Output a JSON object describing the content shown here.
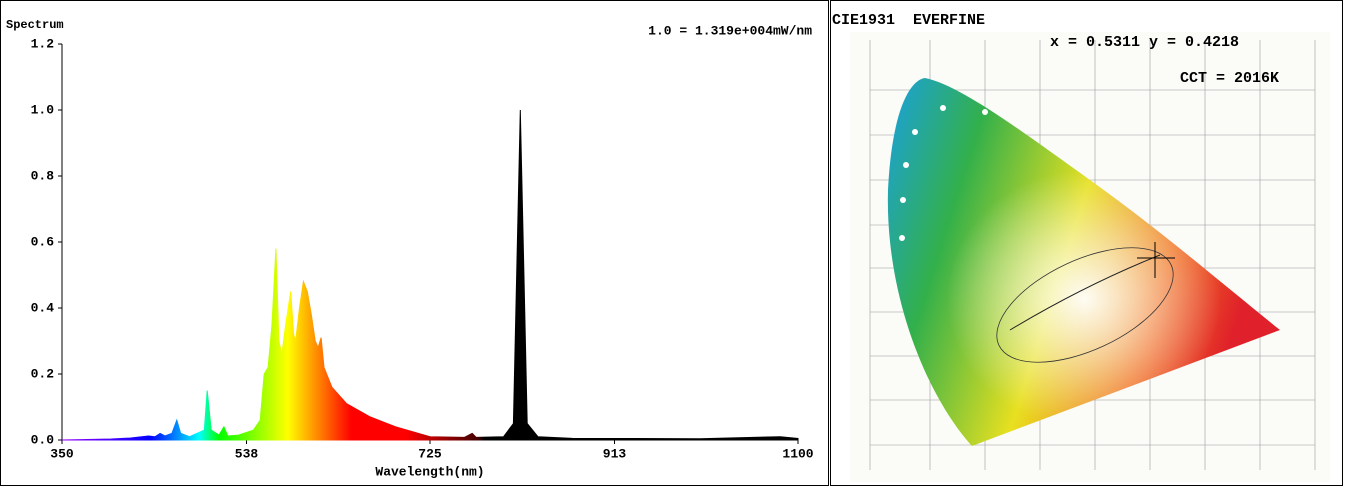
{
  "chart_data": {
    "type": "area",
    "title": "Spectrum",
    "annotation": "1.0 = 1.319e+004mW/nm",
    "xlabel": "Wavelength(nm)",
    "x": [
      350,
      400,
      420,
      438,
      445,
      450,
      455,
      462,
      467,
      471,
      480,
      495,
      498,
      502,
      510,
      515,
      519,
      530,
      545,
      552,
      556,
      560,
      564,
      568,
      571,
      574,
      578,
      583,
      586,
      588,
      592,
      596,
      600,
      604,
      608,
      611,
      614,
      617,
      625,
      640,
      664,
      690,
      725,
      760,
      768,
      772,
      800,
      810,
      817,
      824,
      835,
      870,
      1000,
      1082,
      1100
    ],
    "values": [
      0,
      0.003,
      0.006,
      0.012,
      0.01,
      0.02,
      0.012,
      0.02,
      0.06,
      0.02,
      0.01,
      0.03,
      0.15,
      0.03,
      0.015,
      0.04,
      0.012,
      0.015,
      0.03,
      0.06,
      0.2,
      0.22,
      0.35,
      0.58,
      0.3,
      0.26,
      0.35,
      0.45,
      0.32,
      0.3,
      0.4,
      0.48,
      0.45,
      0.38,
      0.3,
      0.28,
      0.31,
      0.22,
      0.16,
      0.11,
      0.07,
      0.04,
      0.01,
      0.008,
      0.02,
      0.008,
      0.01,
      0.05,
      1.0,
      0.05,
      0.01,
      0.005,
      0.004,
      0.01,
      0.005
    ],
    "xlim": [
      350,
      1100
    ],
    "xticks": [
      350,
      538,
      725,
      913,
      1100
    ],
    "ylim": [
      0,
      1.2
    ],
    "yticks": [
      {
        "value": 0,
        "label": "0.0"
      },
      {
        "value": 0.2,
        "label": "0.2"
      },
      {
        "value": 0.4,
        "label": "0.4"
      },
      {
        "value": 0.6,
        "label": "0.6"
      },
      {
        "value": 0.8,
        "label": "0.8"
      },
      {
        "value": 1,
        "label": "1.0"
      },
      {
        "value": 1.2,
        "label": "1.2"
      }
    ]
  },
  "cie": {
    "title": "CIE1931  EVERFINE",
    "coords": "x = 0.5311 y = 0.4218",
    "cct": "CCT = 2016K"
  }
}
